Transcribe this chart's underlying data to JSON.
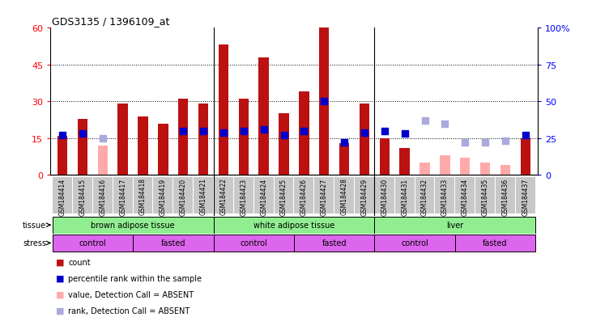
{
  "title": "GDS3135 / 1396109_at",
  "samples": [
    "GSM184414",
    "GSM184415",
    "GSM184416",
    "GSM184417",
    "GSM184418",
    "GSM184419",
    "GSM184420",
    "GSM184421",
    "GSM184422",
    "GSM184423",
    "GSM184424",
    "GSM184425",
    "GSM184426",
    "GSM184427",
    "GSM184428",
    "GSM184429",
    "GSM184430",
    "GSM184431",
    "GSM184432",
    "GSM184433",
    "GSM184434",
    "GSM184435",
    "GSM184436",
    "GSM184437"
  ],
  "bar_present": [
    16,
    23,
    null,
    29,
    24,
    21,
    31,
    29,
    53,
    31,
    48,
    25,
    34,
    60,
    13,
    29,
    15,
    11,
    null,
    null,
    null,
    null,
    null,
    15
  ],
  "bar_absent": [
    null,
    null,
    12,
    null,
    null,
    null,
    null,
    null,
    null,
    null,
    null,
    null,
    null,
    null,
    null,
    null,
    null,
    null,
    5,
    8,
    7,
    5,
    4,
    null
  ],
  "rank_present": [
    27,
    28,
    null,
    null,
    null,
    null,
    30,
    30,
    29,
    30,
    31,
    27,
    30,
    50,
    22,
    29,
    30,
    28,
    null,
    null,
    null,
    null,
    null,
    27
  ],
  "rank_absent": [
    null,
    null,
    25,
    null,
    null,
    null,
    null,
    null,
    null,
    null,
    null,
    null,
    null,
    null,
    null,
    null,
    null,
    null,
    37,
    35,
    22,
    22,
    23,
    null
  ],
  "tissues": [
    {
      "label": "brown adipose tissue",
      "start": 0,
      "end": 7
    },
    {
      "label": "white adipose tissue",
      "start": 8,
      "end": 15
    },
    {
      "label": "liver",
      "start": 16,
      "end": 23
    }
  ],
  "stresses": [
    {
      "label": "control",
      "start": 0,
      "end": 3
    },
    {
      "label": "fasted",
      "start": 4,
      "end": 7
    },
    {
      "label": "control",
      "start": 8,
      "end": 11
    },
    {
      "label": "fasted",
      "start": 12,
      "end": 15
    },
    {
      "label": "control",
      "start": 16,
      "end": 19
    },
    {
      "label": "fasted",
      "start": 20,
      "end": 23
    }
  ],
  "ylim_left": [
    0,
    60
  ],
  "ylim_right": [
    0,
    100
  ],
  "yticks_left": [
    0,
    15,
    30,
    45,
    60
  ],
  "yticks_right": [
    0,
    25,
    50,
    75,
    100
  ],
  "hlines": [
    15,
    30,
    45
  ],
  "group_seps": [
    7.5,
    15.5
  ],
  "bar_color": "#BB1111",
  "bar_absent_color": "#FFAAAA",
  "rank_present_color": "#0000CC",
  "rank_absent_color": "#AAAADD",
  "tissue_color": "#90EE90",
  "stress_color": "#DD66EE",
  "xticklabel_bg": "#C8C8C8",
  "legend": [
    {
      "color": "#BB1111",
      "label": "count"
    },
    {
      "color": "#0000CC",
      "label": "percentile rank within the sample"
    },
    {
      "color": "#FFAAAA",
      "label": "value, Detection Call = ABSENT"
    },
    {
      "color": "#AAAADD",
      "label": "rank, Detection Call = ABSENT"
    }
  ]
}
